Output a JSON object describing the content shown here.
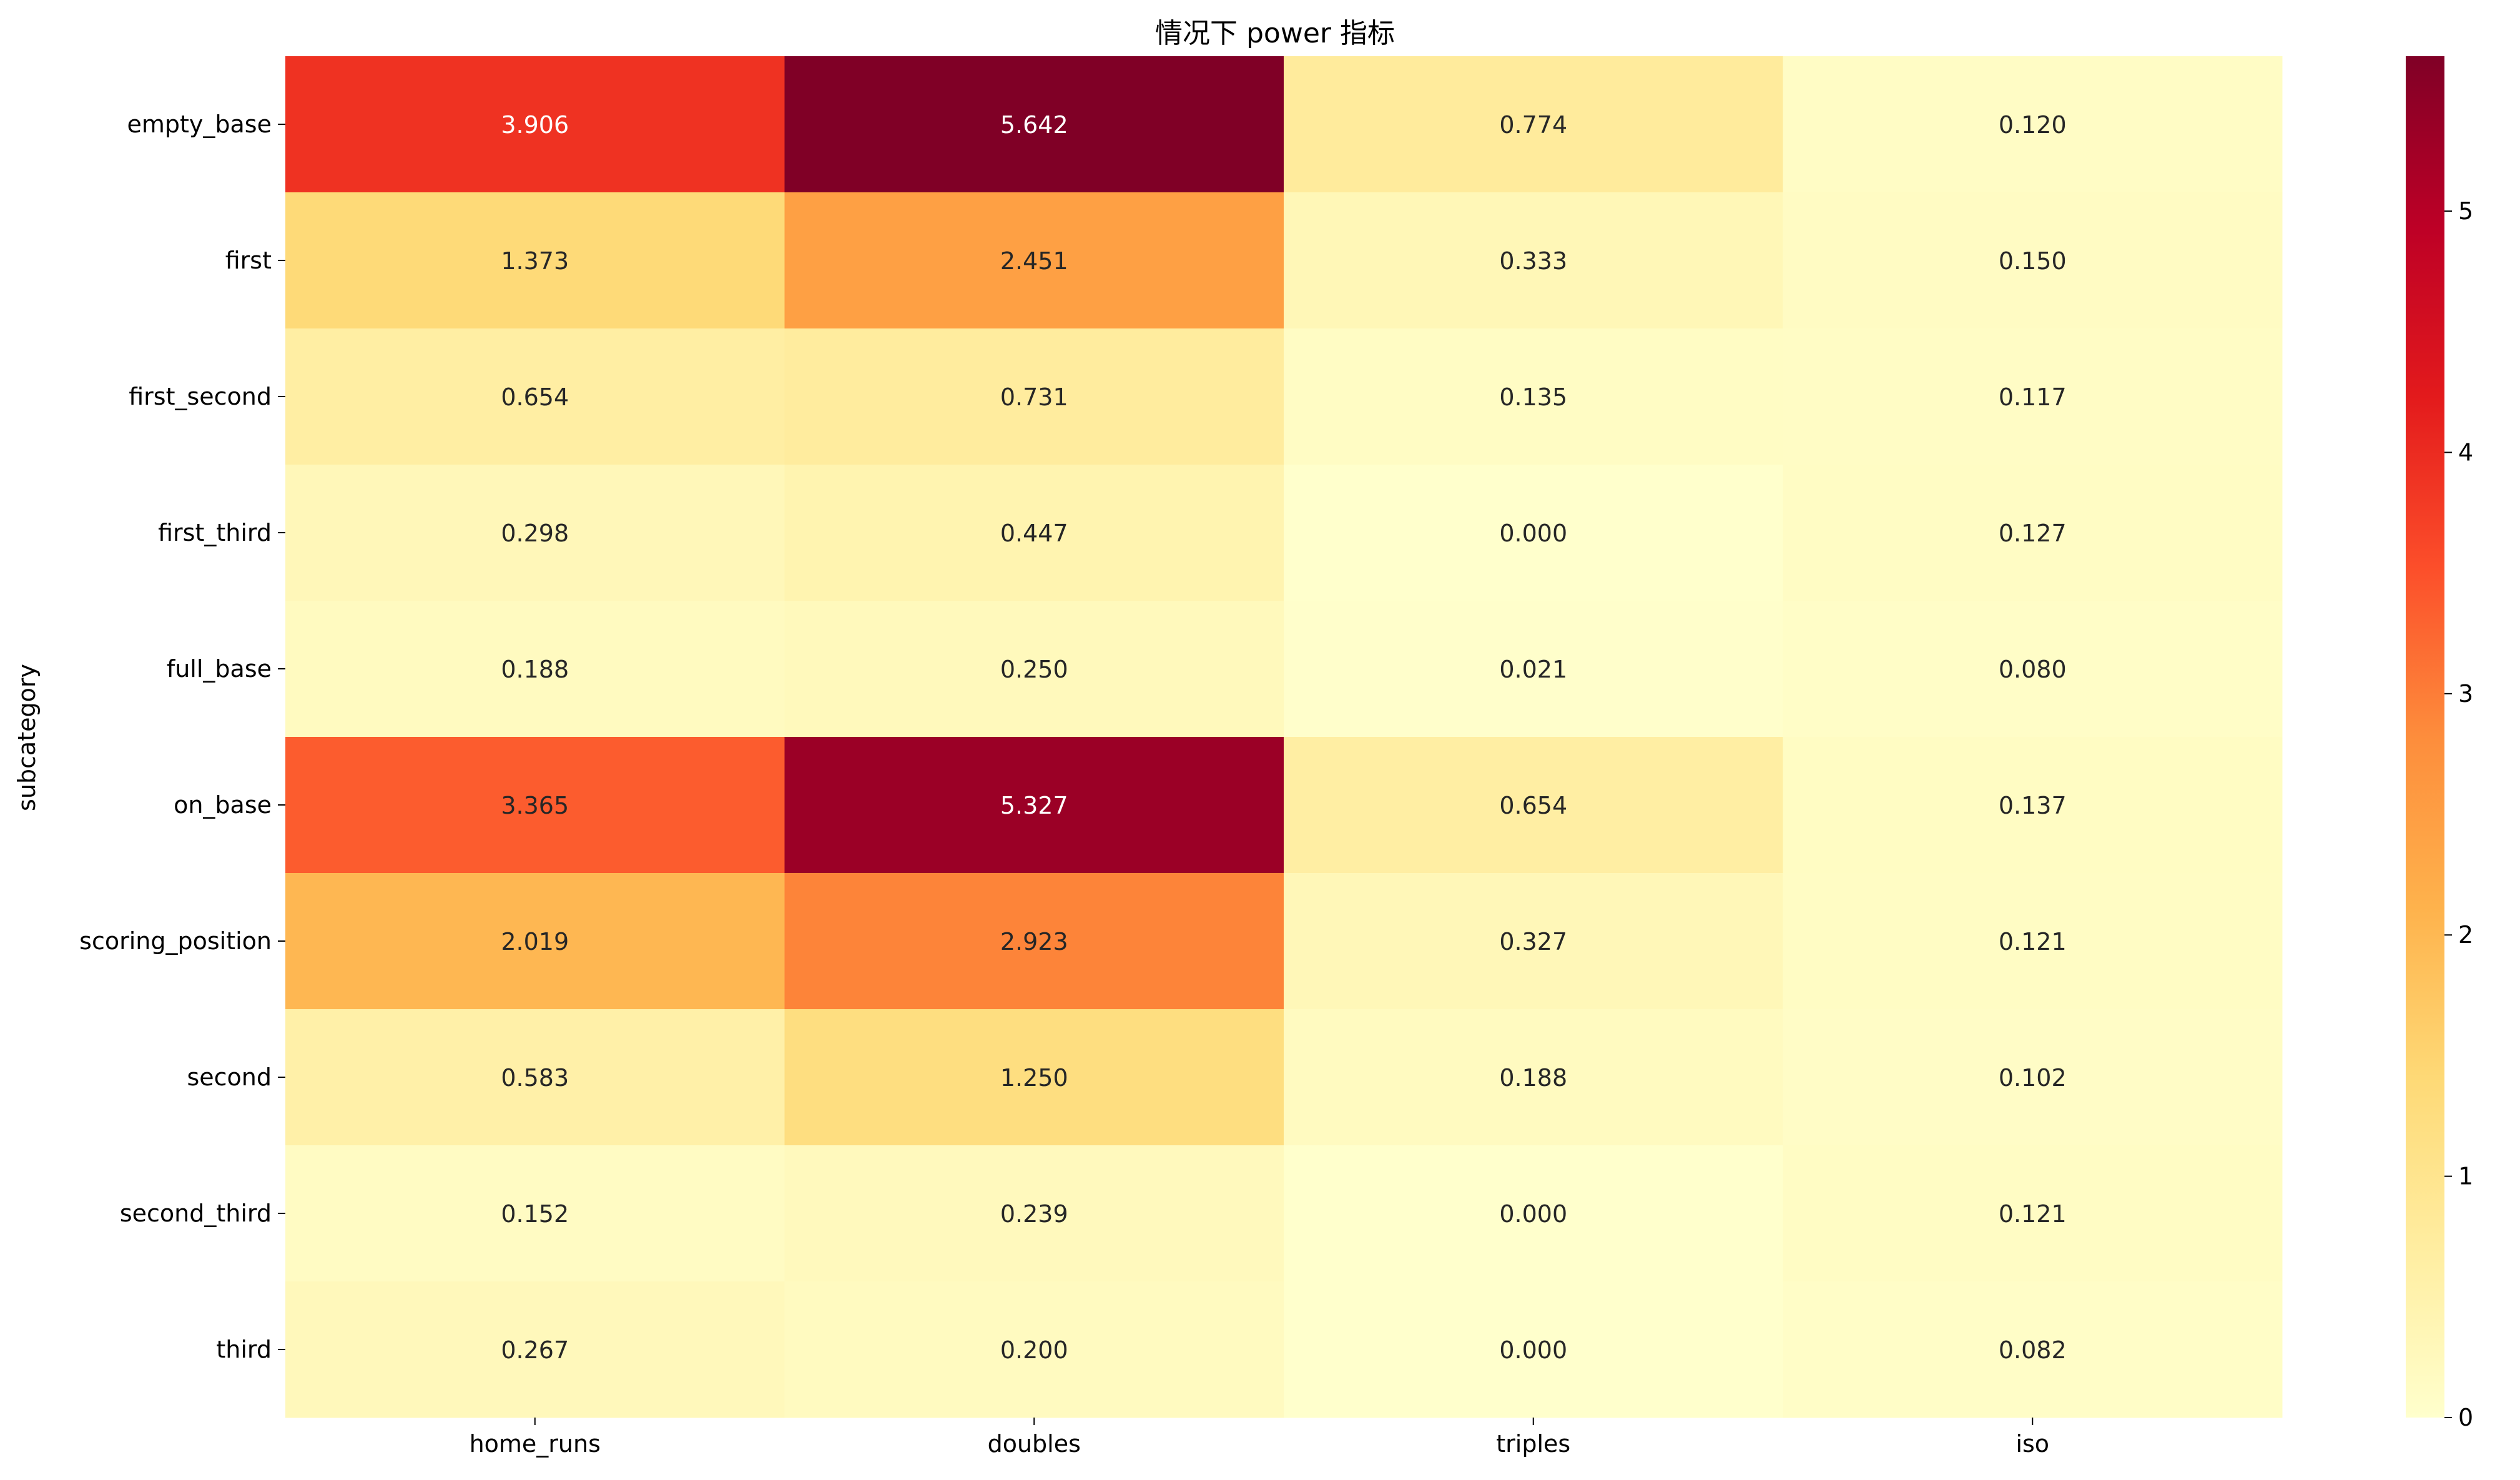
{
  "chart_data": {
    "type": "heatmap",
    "title": "情况下 power 指标",
    "xlabel": "",
    "ylabel": "subcategory",
    "columns": [
      "home_runs",
      "doubles",
      "triples",
      "iso"
    ],
    "rows": [
      "empty_base",
      "first",
      "first_second",
      "first_third",
      "full_base",
      "on_base",
      "scoring_position",
      "second",
      "second_third",
      "third"
    ],
    "values": [
      [
        3.906,
        5.642,
        0.774,
        0.12
      ],
      [
        1.373,
        2.451,
        0.333,
        0.15
      ],
      [
        0.654,
        0.731,
        0.135,
        0.117
      ],
      [
        0.298,
        0.447,
        0.0,
        0.127
      ],
      [
        0.188,
        0.25,
        0.021,
        0.08
      ],
      [
        3.365,
        5.327,
        0.654,
        0.137
      ],
      [
        2.019,
        2.923,
        0.327,
        0.121
      ],
      [
        0.583,
        1.25,
        0.188,
        0.102
      ],
      [
        0.152,
        0.239,
        0.0,
        0.121
      ],
      [
        0.267,
        0.2,
        0.0,
        0.082
      ]
    ],
    "value_format": "0.000",
    "colormap": "YlOrRd",
    "colormap_stops": [
      "#ffffcc",
      "#ffeda0",
      "#fed976",
      "#feb24c",
      "#fd8d3c",
      "#fc4e2a",
      "#e31a1c",
      "#bd0026",
      "#800026"
    ],
    "color_range": [
      0,
      5.642
    ],
    "colorbar_ticks": [
      0,
      1,
      2,
      3,
      4,
      5
    ],
    "grid": false,
    "legend": "colorbar-right"
  }
}
